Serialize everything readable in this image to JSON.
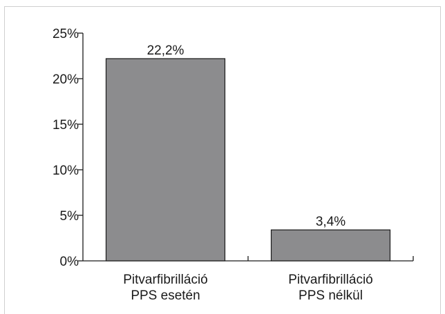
{
  "chart_data": {
    "type": "bar",
    "categories": [
      [
        "Pitvarfibrilláció",
        "PPS esetén"
      ],
      [
        "Pitvarfibrilláció",
        "PPS nélkül"
      ]
    ],
    "values": [
      22.2,
      3.4
    ],
    "data_labels": [
      "22,2%",
      "3,4%"
    ],
    "y_ticks": [
      0,
      5,
      10,
      15,
      20,
      25
    ],
    "y_tick_labels": [
      "0%",
      "5%",
      "10%",
      "15%",
      "20%",
      "25%"
    ],
    "ylim": [
      0,
      25
    ],
    "grid": false,
    "bar_color": "#8c8c8e"
  }
}
